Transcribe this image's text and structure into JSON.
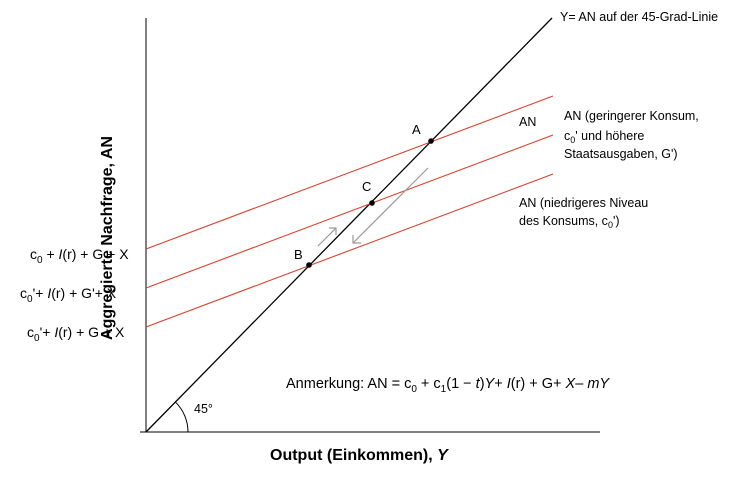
{
  "chart_data": {
    "type": "line",
    "title": "",
    "xlabel": "Output (Einkommen), Y",
    "ylabel": "Aggregierte Nachfrage, AN",
    "colors": {
      "axes": "#000000",
      "ad_lines": "#d9412b",
      "arrows": "#9a9a9a"
    },
    "series": [
      {
        "name": "Y= AN auf der 45-Grad-Linie",
        "style": "black"
      },
      {
        "name": "AN",
        "intercept_label": "c0 + I(r) + G + X",
        "style": "red"
      },
      {
        "name": "AN (geringerer Konsum, c0' und höhere Staatsausgaben, G')",
        "intercept_label": "c0' + I(r) + G' + X",
        "style": "red"
      },
      {
        "name": "AN (niedrigeres Niveau des Konsums, c0')",
        "intercept_label": "c0' + I(r) + G + X",
        "style": "red"
      }
    ],
    "points": [
      "A",
      "B",
      "C"
    ],
    "angle_label": "45°",
    "note": "Anmerkung: AN = c0 + c1(1 − t)Y + I(r) + G + X − mY"
  },
  "labels": {
    "line45": "Y= AN auf der 45-Grad-Linie",
    "ad_top": "AN",
    "ad_mid_1": "AN (geringerer Konsum,",
    "ad_mid_2_c": "c",
    "ad_mid_2_sub": "0",
    "ad_mid_2_rest": "' und höhere",
    "ad_mid_3": "Staatsausgaben, G')",
    "ad_low_1": "AN (niedrigeres Niveau",
    "ad_low_2_a": "des Konsums, c",
    "ad_low_2_sub": "0",
    "ad_low_2_b": "')",
    "point_a": "A",
    "point_b": "B",
    "point_c": "C",
    "angle": "45°",
    "xlabel": "Output (Einkommen), ",
    "xlabel_var": "Y",
    "ylabel": "Aggregierte Nachfrage, AN"
  },
  "intercepts": {
    "top": {
      "c": "c",
      "sub": "0",
      "prime": "",
      "rest_pre": " + ",
      "i": "I",
      "r": "(r)",
      "rest_post": " + G + X"
    },
    "mid": {
      "c": "c",
      "sub": "0",
      "prime": "'",
      "rest_pre": "+ ",
      "i": "I",
      "r": "(r)",
      "rest_post": " + G'+ X"
    },
    "low": {
      "c": "c",
      "sub": "0",
      "prime": "'",
      "rest_pre": "+ ",
      "i": "I",
      "r": "(r)",
      "rest_post": " + G + X"
    }
  },
  "note": {
    "pre": "Anmerkung: AN = c",
    "sub0": "0",
    "plus_c": " + c",
    "sub1": "1",
    "paren": "(1 − ",
    "t": "t",
    "close": ")",
    "y": "Y",
    "plus1": "+  ",
    "i": "I",
    "r": "(r)",
    "plus2": " + G+  ",
    "x": "X",
    "minus": "–  ",
    "mY": "mY"
  }
}
